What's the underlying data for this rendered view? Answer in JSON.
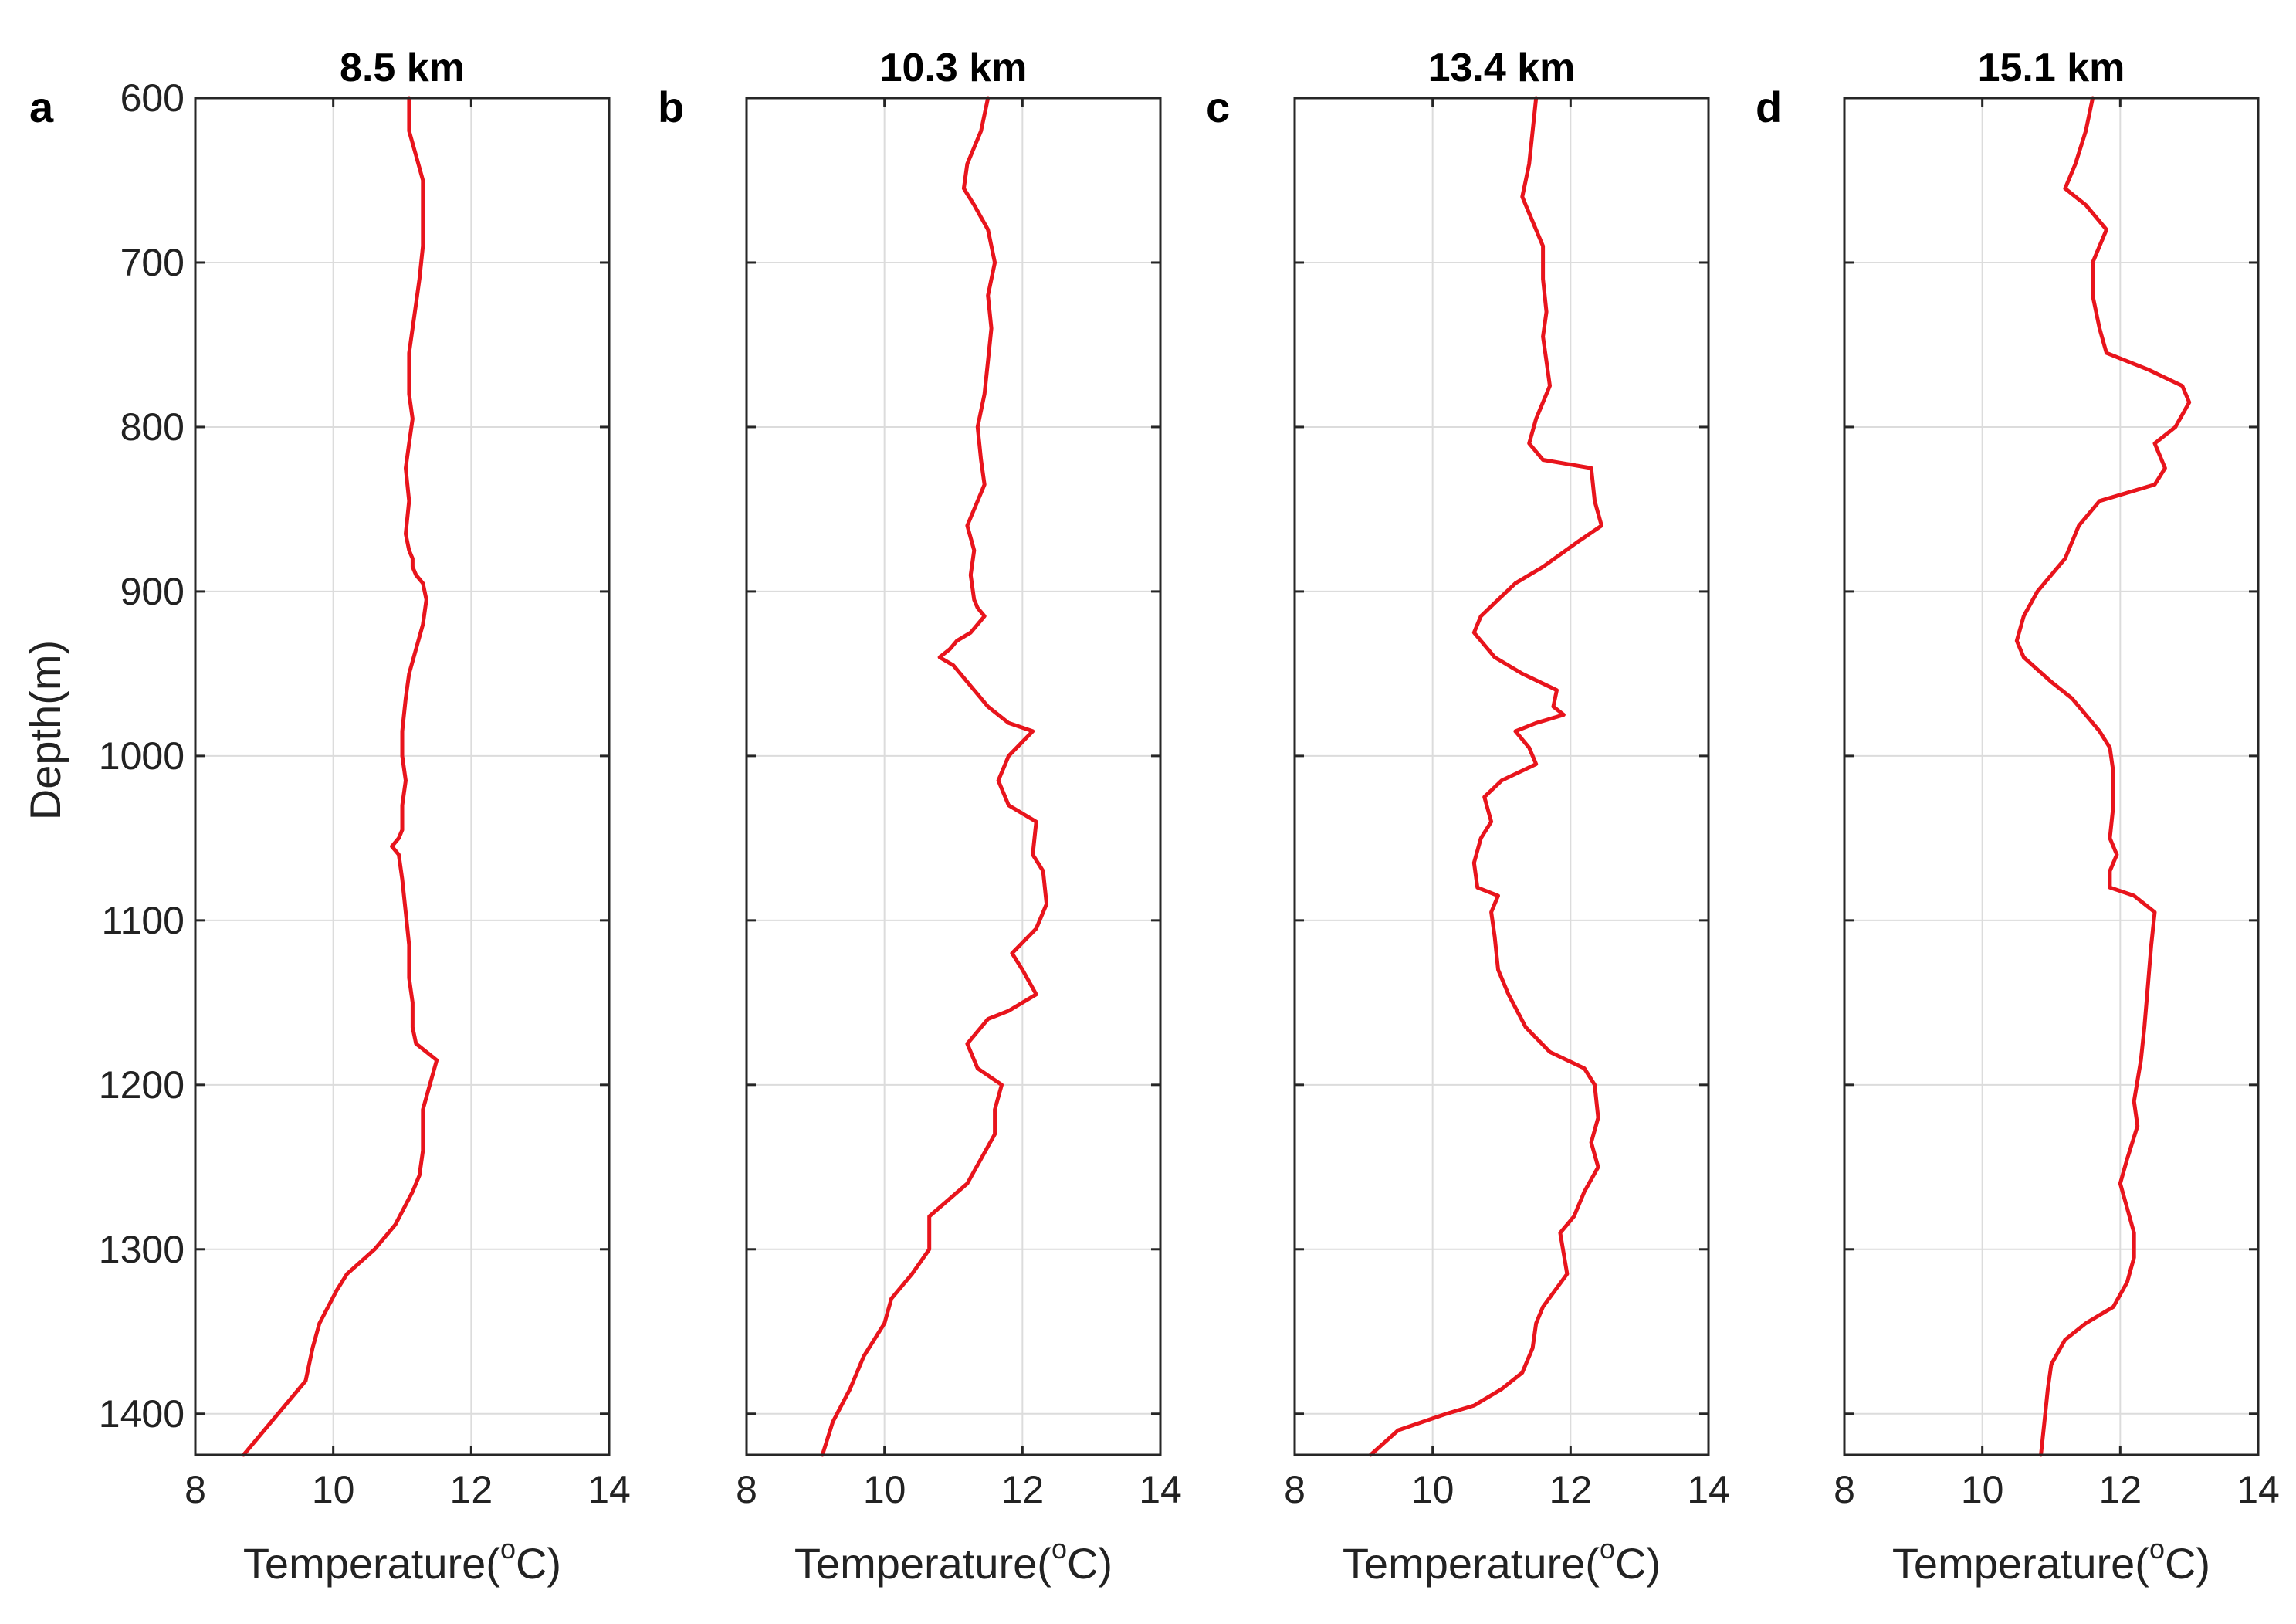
{
  "colors": {
    "line": "#e8141c"
  },
  "chart_data": [
    {
      "type": "line",
      "letter": "a",
      "title": "8.5 km",
      "xlabel": "Temperature(",
      "xlabel_sup": "o",
      "xlabel_tail": "C)",
      "ylabel": "Depth(m)",
      "xlim": [
        8,
        14
      ],
      "ylim": [
        600,
        1425
      ],
      "y_reversed": true,
      "grid": true,
      "xticks": [
        "8",
        "10",
        "12",
        "14"
      ],
      "yticks": [
        "600",
        "700",
        "800",
        "900",
        "1000",
        "1100",
        "1200",
        "1300",
        "1400"
      ],
      "series": [
        {
          "x": [
            11.1,
            11.1,
            11.2,
            11.3,
            11.3,
            11.3,
            11.25,
            11.2,
            11.15,
            11.1,
            11.1,
            11.15,
            11.1,
            11.05,
            11.1,
            11.05,
            11.1,
            11.15,
            11.15,
            11.2,
            11.3,
            11.35,
            11.3,
            11.2,
            11.1,
            11.05,
            11.0,
            11.0,
            11.05,
            11.0,
            11.0,
            10.95,
            10.85,
            10.95,
            11.0,
            11.05,
            11.1,
            11.1,
            11.15,
            11.15,
            11.2,
            11.35,
            11.5,
            11.4,
            11.3,
            11.3,
            11.25,
            11.15,
            10.9,
            10.6,
            10.2,
            10.05,
            9.8,
            9.7,
            9.6,
            9.3,
            9.0,
            8.7
          ],
          "y": [
            600,
            620,
            635,
            650,
            670,
            690,
            710,
            725,
            740,
            755,
            780,
            795,
            810,
            825,
            845,
            865,
            875,
            880,
            885,
            890,
            895,
            905,
            920,
            935,
            950,
            965,
            985,
            1000,
            1015,
            1030,
            1045,
            1050,
            1055,
            1060,
            1075,
            1095,
            1115,
            1135,
            1150,
            1165,
            1175,
            1180,
            1185,
            1200,
            1215,
            1240,
            1255,
            1265,
            1285,
            1300,
            1315,
            1325,
            1345,
            1360,
            1380,
            1395,
            1410,
            1425
          ]
        }
      ]
    },
    {
      "type": "line",
      "letter": "b",
      "title": "10.3 km",
      "xlabel": "Temperature(",
      "xlabel_sup": "o",
      "xlabel_tail": "C)",
      "xlim": [
        8,
        14
      ],
      "ylim": [
        600,
        1425
      ],
      "y_reversed": true,
      "grid": true,
      "xticks": [
        "8",
        "10",
        "12",
        "14"
      ],
      "yticks": [
        "600",
        "700",
        "800",
        "900",
        "1000",
        "1100",
        "1200",
        "1300",
        "1400"
      ],
      "series": [
        {
          "x": [
            11.5,
            11.4,
            11.2,
            11.15,
            11.3,
            11.5,
            11.6,
            11.5,
            11.55,
            11.5,
            11.45,
            11.35,
            11.4,
            11.45,
            11.35,
            11.2,
            11.3,
            11.25,
            11.3,
            11.35,
            11.45,
            11.25,
            11.05,
            10.95,
            10.8,
            11.0,
            11.3,
            11.5,
            11.8,
            12.15,
            11.8,
            11.65,
            11.8,
            12.2,
            12.15,
            12.3,
            12.35,
            12.2,
            11.85,
            12.0,
            12.2,
            11.8,
            11.5,
            11.2,
            11.35,
            11.7,
            11.6,
            11.6,
            11.4,
            11.2,
            10.65,
            10.65,
            10.4,
            10.1,
            10.0,
            9.7,
            9.5,
            9.25,
            9.1
          ],
          "y": [
            600,
            620,
            640,
            655,
            665,
            680,
            700,
            720,
            740,
            760,
            780,
            800,
            820,
            835,
            845,
            860,
            875,
            890,
            905,
            910,
            915,
            925,
            930,
            935,
            940,
            945,
            960,
            970,
            980,
            985,
            1000,
            1015,
            1030,
            1040,
            1060,
            1070,
            1090,
            1105,
            1120,
            1130,
            1145,
            1155,
            1160,
            1175,
            1190,
            1200,
            1215,
            1230,
            1245,
            1260,
            1280,
            1300,
            1315,
            1330,
            1345,
            1365,
            1385,
            1405,
            1425
          ]
        }
      ]
    },
    {
      "type": "line",
      "letter": "c",
      "title": "13.4 km",
      "xlabel": "Temperature(",
      "xlabel_sup": "o",
      "xlabel_tail": "C)",
      "xlim": [
        8,
        14
      ],
      "ylim": [
        600,
        1425
      ],
      "y_reversed": true,
      "grid": true,
      "xticks": [
        "8",
        "10",
        "12",
        "14"
      ],
      "yticks": [
        "600",
        "700",
        "800",
        "900",
        "1000",
        "1100",
        "1200",
        "1300",
        "1400"
      ],
      "series": [
        {
          "x": [
            11.5,
            11.45,
            11.4,
            11.35,
            11.3,
            11.4,
            11.6,
            11.6,
            11.65,
            11.6,
            11.65,
            11.7,
            11.6,
            11.5,
            11.4,
            11.6,
            12.3,
            12.35,
            12.45,
            12.1,
            11.6,
            11.2,
            10.95,
            10.7,
            10.6,
            10.9,
            11.3,
            11.8,
            11.75,
            11.9,
            11.5,
            11.2,
            11.4,
            11.5,
            11.0,
            10.75,
            10.85,
            10.7,
            10.6,
            10.65,
            10.95,
            10.85,
            10.9,
            10.95,
            11.1,
            11.35,
            11.7,
            12.2,
            12.35,
            12.4,
            12.3,
            12.4,
            12.2,
            12.05,
            11.85,
            11.95,
            11.6,
            11.5,
            11.45,
            11.3,
            11.0,
            10.6,
            10.2,
            9.5,
            9.1
          ],
          "y": [
            600,
            620,
            640,
            650,
            660,
            670,
            690,
            710,
            730,
            745,
            760,
            775,
            785,
            795,
            810,
            820,
            825,
            845,
            860,
            870,
            885,
            895,
            905,
            915,
            925,
            940,
            950,
            960,
            970,
            975,
            980,
            985,
            995,
            1005,
            1015,
            1025,
            1040,
            1050,
            1065,
            1080,
            1085,
            1095,
            1110,
            1130,
            1145,
            1165,
            1180,
            1190,
            1200,
            1220,
            1235,
            1250,
            1265,
            1280,
            1290,
            1315,
            1335,
            1345,
            1360,
            1375,
            1385,
            1395,
            1400,
            1410,
            1425
          ]
        }
      ]
    },
    {
      "type": "line",
      "letter": "d",
      "title": "15.1 km",
      "xlabel": "Temperature(",
      "xlabel_sup": "o",
      "xlabel_tail": "C)",
      "xlim": [
        8,
        14
      ],
      "ylim": [
        600,
        1425
      ],
      "y_reversed": true,
      "grid": true,
      "xticks": [
        "8",
        "10",
        "12",
        "14"
      ],
      "yticks": [
        "600",
        "700",
        "800",
        "900",
        "1000",
        "1100",
        "1200",
        "1300",
        "1400"
      ],
      "series": [
        {
          "x": [
            11.6,
            11.5,
            11.35,
            11.2,
            11.5,
            11.8,
            11.6,
            11.6,
            11.7,
            11.8,
            12.4,
            12.9,
            13.0,
            12.8,
            12.5,
            12.65,
            12.5,
            11.7,
            11.4,
            11.2,
            10.8,
            10.6,
            10.5,
            10.6,
            11.0,
            11.3,
            11.5,
            11.7,
            11.85,
            11.9,
            11.9,
            11.85,
            11.95,
            11.85,
            11.85,
            12.2,
            12.5,
            12.45,
            12.4,
            12.35,
            12.3,
            12.2,
            12.25,
            12.1,
            12.0,
            12.1,
            12.2,
            12.2,
            12.1,
            11.9,
            11.5,
            11.2,
            11.0,
            10.95,
            10.9,
            10.85
          ],
          "y": [
            600,
            620,
            640,
            655,
            665,
            680,
            700,
            720,
            740,
            755,
            765,
            775,
            785,
            800,
            810,
            825,
            835,
            845,
            860,
            880,
            900,
            915,
            930,
            940,
            955,
            965,
            975,
            985,
            995,
            1010,
            1030,
            1050,
            1060,
            1070,
            1080,
            1085,
            1095,
            1115,
            1140,
            1165,
            1185,
            1210,
            1225,
            1245,
            1260,
            1275,
            1290,
            1305,
            1320,
            1335,
            1345,
            1355,
            1370,
            1385,
            1405,
            1425
          ]
        }
      ]
    }
  ]
}
